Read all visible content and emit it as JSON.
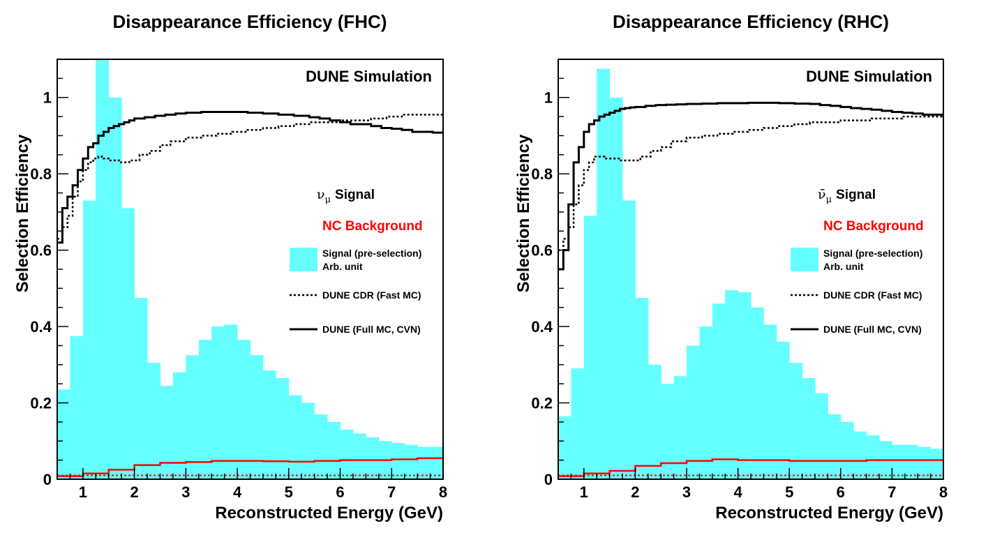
{
  "chart_data": [
    {
      "type": "histogram",
      "title": "Disappearance Efficiency (FHC)",
      "xlabel": "Reconstructed Energy (GeV)",
      "ylabel": "Selection Efficiency",
      "xlim": [
        0.5,
        8
      ],
      "ylim": [
        0,
        1.1
      ],
      "xticks": [
        1,
        2,
        3,
        4,
        5,
        6,
        7,
        8
      ],
      "yticks": [
        0,
        0.2,
        0.4,
        0.6,
        0.8,
        1
      ],
      "annotation": "DUNE Simulation",
      "signal_label_main": "ν",
      "signal_label_sub": "μ",
      "signal_label_text": "Signal",
      "background_label": "NC Background",
      "legend": {
        "hist_line1": "Signal (pre-selection)",
        "hist_line2": "Arb. unit",
        "fast": "DUNE CDR (Fast MC)",
        "full": "DUNE (Full MC, CVN)"
      },
      "colors": {
        "hist": "#66ffff",
        "signal": "#000000",
        "background": "#ff0000"
      },
      "hist_edges": [
        0.5,
        0.75,
        1.0,
        1.25,
        1.5,
        1.75,
        2.0,
        2.25,
        2.5,
        2.75,
        3.0,
        3.25,
        3.5,
        3.75,
        4.0,
        4.25,
        4.5,
        4.75,
        5.0,
        5.25,
        5.5,
        5.75,
        6.0,
        6.25,
        6.5,
        6.75,
        7.0,
        7.25,
        7.5,
        7.75,
        8.0
      ],
      "hist_values": [
        0.235,
        0.375,
        0.73,
        1.1,
        1.0,
        0.71,
        0.475,
        0.305,
        0.245,
        0.28,
        0.325,
        0.365,
        0.4,
        0.405,
        0.365,
        0.325,
        0.285,
        0.265,
        0.22,
        0.2,
        0.17,
        0.15,
        0.13,
        0.12,
        0.11,
        0.1,
        0.095,
        0.09,
        0.085,
        0.085
      ],
      "full_x": [
        0.5,
        0.6,
        0.7,
        0.8,
        0.9,
        1.0,
        1.1,
        1.2,
        1.3,
        1.4,
        1.5,
        1.6,
        1.7,
        1.8,
        1.9,
        2.0,
        2.2,
        2.4,
        2.6,
        2.8,
        3.0,
        3.3,
        3.6,
        3.9,
        4.2,
        4.5,
        4.8,
        5.1,
        5.4,
        5.6,
        5.8,
        6.0,
        6.2,
        6.4,
        6.6,
        6.8,
        7.0,
        7.2,
        7.4,
        7.6,
        7.8,
        8.0
      ],
      "full_y": [
        0.62,
        0.71,
        0.74,
        0.77,
        0.81,
        0.84,
        0.87,
        0.88,
        0.9,
        0.91,
        0.92,
        0.925,
        0.93,
        0.935,
        0.94,
        0.945,
        0.948,
        0.952,
        0.955,
        0.958,
        0.96,
        0.962,
        0.962,
        0.962,
        0.96,
        0.958,
        0.955,
        0.952,
        0.948,
        0.945,
        0.94,
        0.935,
        0.93,
        0.93,
        0.925,
        0.92,
        0.918,
        0.915,
        0.91,
        0.91,
        0.908,
        0.91
      ],
      "fast_x": [
        0.5,
        0.6,
        0.7,
        0.8,
        0.9,
        1.0,
        1.1,
        1.2,
        1.3,
        1.4,
        1.5,
        1.7,
        1.9,
        2.1,
        2.3,
        2.5,
        2.7,
        3.0,
        3.3,
        3.6,
        3.9,
        4.2,
        4.5,
        4.8,
        5.1,
        5.4,
        5.7,
        6.0,
        6.3,
        6.6,
        6.9,
        7.2,
        7.5,
        7.8,
        8.0
      ],
      "fast_y": [
        0.63,
        0.66,
        0.69,
        0.74,
        0.78,
        0.81,
        0.83,
        0.84,
        0.845,
        0.84,
        0.835,
        0.83,
        0.835,
        0.85,
        0.86,
        0.875,
        0.885,
        0.895,
        0.9,
        0.905,
        0.91,
        0.915,
        0.92,
        0.925,
        0.93,
        0.935,
        0.935,
        0.94,
        0.94,
        0.945,
        0.95,
        0.955,
        0.955,
        0.955,
        0.955
      ],
      "bkg_x": [
        0.5,
        1.0,
        1.5,
        2.0,
        2.5,
        3.0,
        3.5,
        4.0,
        4.5,
        5.0,
        5.5,
        6.0,
        6.5,
        7.0,
        7.5,
        8.0
      ],
      "bkg_y": [
        0.008,
        0.015,
        0.025,
        0.037,
        0.043,
        0.045,
        0.048,
        0.048,
        0.047,
        0.046,
        0.048,
        0.05,
        0.05,
        0.052,
        0.055,
        0.048
      ],
      "bkg_fast_y": 0.01
    },
    {
      "type": "histogram",
      "title": "Disappearance Efficiency (RHC)",
      "xlabel": "Reconstructed Energy (GeV)",
      "ylabel": "Selection Efficiency",
      "xlim": [
        0.5,
        8
      ],
      "ylim": [
        0,
        1.1
      ],
      "xticks": [
        1,
        2,
        3,
        4,
        5,
        6,
        7,
        8
      ],
      "yticks": [
        0,
        0.2,
        0.4,
        0.6,
        0.8,
        1
      ],
      "annotation": "DUNE Simulation",
      "signal_label_main": "ν̄",
      "signal_label_sub": "μ",
      "signal_label_text": "Signal",
      "background_label": "NC Background",
      "legend": {
        "hist_line1": "Signal (pre-selection)",
        "hist_line2": "Arb. unit",
        "fast": "DUNE CDR (Fast MC)",
        "full": "DUNE (Full MC, CVN)"
      },
      "colors": {
        "hist": "#66ffff",
        "signal": "#000000",
        "background": "#ff0000"
      },
      "hist_edges": [
        0.5,
        0.75,
        1.0,
        1.25,
        1.5,
        1.75,
        2.0,
        2.25,
        2.5,
        2.75,
        3.0,
        3.25,
        3.5,
        3.75,
        4.0,
        4.25,
        4.5,
        4.75,
        5.0,
        5.25,
        5.5,
        5.75,
        6.0,
        6.25,
        6.5,
        6.75,
        7.0,
        7.25,
        7.5,
        7.75,
        8.0
      ],
      "hist_values": [
        0.165,
        0.29,
        0.69,
        1.075,
        1.0,
        0.73,
        0.475,
        0.3,
        0.25,
        0.27,
        0.35,
        0.4,
        0.46,
        0.495,
        0.49,
        0.45,
        0.405,
        0.36,
        0.305,
        0.265,
        0.225,
        0.17,
        0.15,
        0.125,
        0.115,
        0.1,
        0.09,
        0.09,
        0.085,
        0.08
      ],
      "full_x": [
        0.5,
        0.6,
        0.7,
        0.8,
        0.9,
        1.0,
        1.1,
        1.2,
        1.3,
        1.4,
        1.5,
        1.6,
        1.7,
        1.8,
        1.9,
        2.0,
        2.2,
        2.4,
        2.6,
        2.8,
        3.0,
        3.3,
        3.6,
        3.9,
        4.2,
        4.5,
        4.8,
        5.1,
        5.4,
        5.6,
        5.8,
        6.0,
        6.2,
        6.4,
        6.6,
        6.8,
        7.0,
        7.2,
        7.4,
        7.6,
        7.8,
        8.0
      ],
      "full_y": [
        0.55,
        0.6,
        0.72,
        0.83,
        0.87,
        0.91,
        0.93,
        0.94,
        0.95,
        0.955,
        0.96,
        0.965,
        0.97,
        0.972,
        0.974,
        0.975,
        0.978,
        0.98,
        0.981,
        0.982,
        0.983,
        0.984,
        0.985,
        0.985,
        0.986,
        0.986,
        0.985,
        0.984,
        0.983,
        0.98,
        0.978,
        0.975,
        0.972,
        0.97,
        0.968,
        0.965,
        0.962,
        0.96,
        0.958,
        0.955,
        0.955,
        0.958
      ],
      "fast_x": [
        0.5,
        0.6,
        0.7,
        0.8,
        0.9,
        1.0,
        1.1,
        1.2,
        1.3,
        1.4,
        1.5,
        1.7,
        1.9,
        2.1,
        2.3,
        2.5,
        2.7,
        3.0,
        3.3,
        3.6,
        3.9,
        4.2,
        4.5,
        4.8,
        5.1,
        5.4,
        5.7,
        6.0,
        6.3,
        6.6,
        6.9,
        7.2,
        7.5,
        7.8,
        8.0
      ],
      "fast_y": [
        0.6,
        0.63,
        0.66,
        0.72,
        0.77,
        0.81,
        0.83,
        0.845,
        0.845,
        0.84,
        0.84,
        0.835,
        0.835,
        0.845,
        0.86,
        0.87,
        0.885,
        0.895,
        0.9,
        0.905,
        0.91,
        0.915,
        0.92,
        0.925,
        0.93,
        0.935,
        0.935,
        0.94,
        0.94,
        0.945,
        0.945,
        0.95,
        0.95,
        0.95,
        0.95
      ],
      "bkg_x": [
        0.5,
        1.0,
        1.5,
        2.0,
        2.5,
        3.0,
        3.5,
        4.0,
        4.5,
        5.0,
        5.5,
        6.0,
        6.5,
        7.0,
        7.5,
        8.0
      ],
      "bkg_y": [
        0.008,
        0.015,
        0.022,
        0.035,
        0.042,
        0.048,
        0.052,
        0.05,
        0.05,
        0.048,
        0.048,
        0.048,
        0.05,
        0.05,
        0.05,
        0.048
      ],
      "bkg_fast_y": 0.01
    }
  ]
}
